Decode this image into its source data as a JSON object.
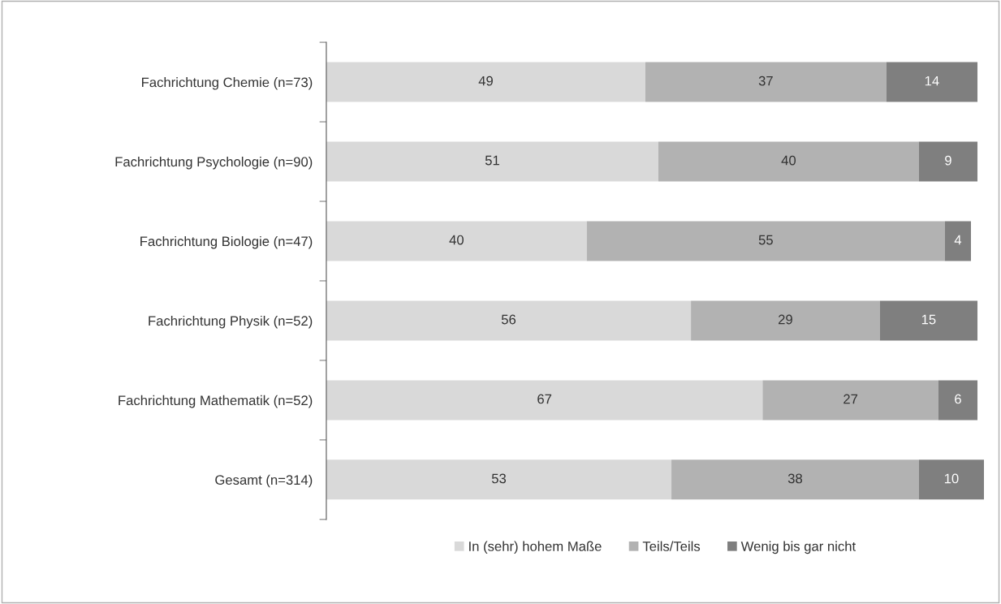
{
  "chart_data": {
    "type": "bar",
    "orientation": "horizontal",
    "stacked": true,
    "data_labels": true,
    "legend": "bottom",
    "grid": false,
    "tick_labels": "y",
    "xlim": [
      0,
      101
    ],
    "categories": [
      "Fachrichtung Chemie (n=73)",
      "Fachrichtung Psychologie (n=90)",
      "Fachrichtung Biologie (n=47)",
      "Fachrichtung Physik (n=52)",
      "Fachrichtung Mathematik (n=52)",
      "Gesamt (n=314)"
    ],
    "series": [
      {
        "name": "In (sehr) hohem Maße",
        "color": "#d9d9d9",
        "values": [
          49,
          51,
          40,
          56,
          67,
          53
        ]
      },
      {
        "name": "Teils/Teils",
        "color": "#b2b2b2",
        "values": [
          37,
          40,
          55,
          29,
          27,
          38
        ]
      },
      {
        "name": "Wenig bis gar nicht",
        "color": "#7f7f7f",
        "values": [
          14,
          9,
          4,
          15,
          6,
          10
        ]
      }
    ]
  }
}
